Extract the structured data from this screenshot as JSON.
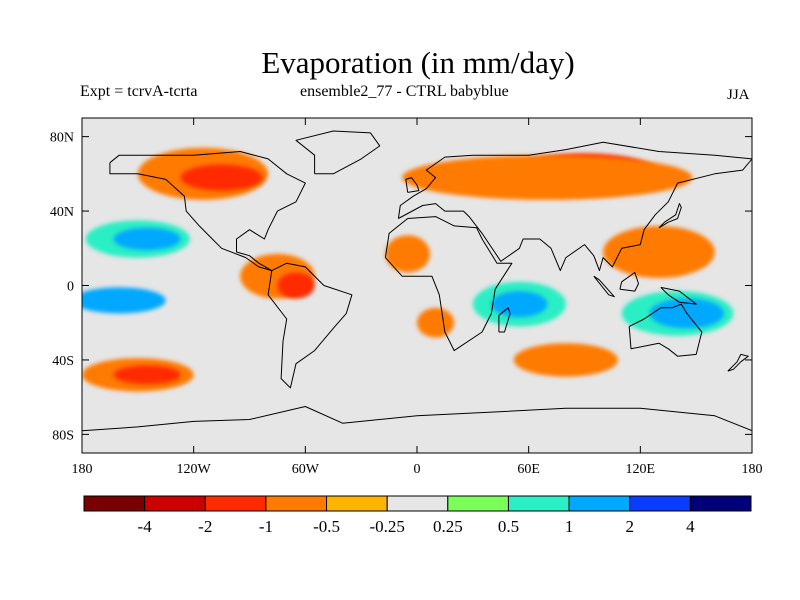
{
  "title": "Evaporation (in mm/day)",
  "subtitle_left": "Expt = tcrvA-tcrta",
  "subtitle_center": "ensemble2_77 - CTRL babyblue",
  "subtitle_right": "JJA",
  "map": {
    "projection": "cylindrical-equidistant",
    "lon_range": [
      -180,
      180
    ],
    "lat_range": [
      -90,
      90
    ],
    "background_color": "#e6e6e6",
    "coastline_color": "#000000",
    "x_ticks": [
      {
        "lon": -180,
        "label": "180"
      },
      {
        "lon": -120,
        "label": "120W"
      },
      {
        "lon": -60,
        "label": "60W"
      },
      {
        "lon": 0,
        "label": "0"
      },
      {
        "lon": 60,
        "label": "60E"
      },
      {
        "lon": 120,
        "label": "120E"
      },
      {
        "lon": 180,
        "label": "180"
      }
    ],
    "y_ticks": [
      {
        "lat": 80,
        "label": "80N"
      },
      {
        "lat": 40,
        "label": "40N"
      },
      {
        "lat": 0,
        "label": "0"
      },
      {
        "lat": -40,
        "label": "40S"
      },
      {
        "lat": -80,
        "label": "80S"
      }
    ],
    "regions": [
      {
        "name": "siberia-negative",
        "lon": 90,
        "lat": 60,
        "rlon": 40,
        "rlat": 11,
        "level": "-1"
      },
      {
        "name": "eurasia-negative-band",
        "lon": 70,
        "lat": 58,
        "rlon": 78,
        "rlat": 12,
        "level": "-0.5"
      },
      {
        "name": "north-america-negative",
        "lon": -115,
        "lat": 60,
        "rlon": 35,
        "rlat": 14,
        "level": "-0.5"
      },
      {
        "name": "north-america-core",
        "lon": -105,
        "lat": 58,
        "rlon": 22,
        "rlat": 7,
        "level": "-1"
      },
      {
        "name": "west-pacific-negative",
        "lon": 130,
        "lat": 18,
        "rlon": 30,
        "rlat": 14,
        "level": "-0.5"
      },
      {
        "name": "north-pacific-positive",
        "lon": -150,
        "lat": 25,
        "rlon": 28,
        "rlat": 10,
        "level": "0.5"
      },
      {
        "name": "north-pacific-core",
        "lon": -145,
        "lat": 25,
        "rlon": 18,
        "rlat": 6,
        "level": "1"
      },
      {
        "name": "central-america-negative",
        "lon": -75,
        "lat": 5,
        "rlon": 20,
        "rlat": 12,
        "level": "-0.5"
      },
      {
        "name": "amazon-core",
        "lon": -65,
        "lat": 0,
        "rlon": 10,
        "rlat": 7,
        "level": "-1"
      },
      {
        "name": "sahara-negative",
        "lon": -5,
        "lat": 17,
        "rlon": 12,
        "rlat": 10,
        "level": "-0.5"
      },
      {
        "name": "indian-ocean-positive",
        "lon": 55,
        "lat": -10,
        "rlon": 25,
        "rlat": 12,
        "level": "0.5"
      },
      {
        "name": "indian-ocean-core",
        "lon": 55,
        "lat": -10,
        "rlon": 15,
        "rlat": 7,
        "level": "1"
      },
      {
        "name": "australia-positive",
        "lon": 140,
        "lat": -15,
        "rlon": 30,
        "rlat": 12,
        "level": "0.5"
      },
      {
        "name": "australia-core",
        "lon": 145,
        "lat": -15,
        "rlon": 20,
        "rlat": 8,
        "level": "1"
      },
      {
        "name": "east-pacific-positive",
        "lon": -160,
        "lat": -8,
        "rlon": 25,
        "rlat": 7,
        "level": "1"
      },
      {
        "name": "south-pacific-negative",
        "lon": -150,
        "lat": -48,
        "rlon": 30,
        "rlat": 9,
        "level": "-0.5"
      },
      {
        "name": "south-pacific-core",
        "lon": -145,
        "lat": -48,
        "rlon": 18,
        "rlat": 5,
        "level": "-1"
      },
      {
        "name": "south-indian-negative",
        "lon": 80,
        "lat": -40,
        "rlon": 28,
        "rlat": 9,
        "level": "-0.5"
      },
      {
        "name": "west-africa-negative",
        "lon": 10,
        "lat": -20,
        "rlon": 10,
        "rlat": 8,
        "level": "-0.5"
      }
    ],
    "coastlines": [
      {
        "name": "north-america",
        "points": [
          [
            -165,
            66
          ],
          [
            -160,
            70
          ],
          [
            -140,
            70
          ],
          [
            -120,
            70
          ],
          [
            -95,
            72
          ],
          [
            -80,
            68
          ],
          [
            -70,
            60
          ],
          [
            -60,
            55
          ],
          [
            -65,
            45
          ],
          [
            -75,
            40
          ],
          [
            -80,
            30
          ],
          [
            -82,
            25
          ],
          [
            -90,
            30
          ],
          [
            -97,
            25
          ],
          [
            -97,
            18
          ],
          [
            -90,
            16
          ],
          [
            -85,
            12
          ],
          [
            -78,
            8
          ],
          [
            -85,
            10
          ],
          [
            -92,
            15
          ],
          [
            -105,
            20
          ],
          [
            -110,
            25
          ],
          [
            -117,
            32
          ],
          [
            -124,
            40
          ],
          [
            -125,
            48
          ],
          [
            -135,
            57
          ],
          [
            -150,
            60
          ],
          [
            -165,
            60
          ],
          [
            -165,
            66
          ]
        ]
      },
      {
        "name": "south-america",
        "points": [
          [
            -78,
            8
          ],
          [
            -70,
            12
          ],
          [
            -60,
            10
          ],
          [
            -50,
            0
          ],
          [
            -35,
            -5
          ],
          [
            -38,
            -15
          ],
          [
            -45,
            -23
          ],
          [
            -55,
            -35
          ],
          [
            -65,
            -42
          ],
          [
            -68,
            -55
          ],
          [
            -73,
            -50
          ],
          [
            -72,
            -30
          ],
          [
            -70,
            -18
          ],
          [
            -80,
            -5
          ],
          [
            -78,
            8
          ]
        ]
      },
      {
        "name": "greenland",
        "points": [
          [
            -55,
            60
          ],
          [
            -45,
            60
          ],
          [
            -30,
            68
          ],
          [
            -20,
            75
          ],
          [
            -25,
            82
          ],
          [
            -45,
            83
          ],
          [
            -65,
            78
          ],
          [
            -55,
            70
          ],
          [
            -55,
            60
          ]
        ]
      },
      {
        "name": "africa",
        "points": [
          [
            -17,
            15
          ],
          [
            -15,
            28
          ],
          [
            -5,
            36
          ],
          [
            10,
            37
          ],
          [
            20,
            32
          ],
          [
            32,
            31
          ],
          [
            35,
            25
          ],
          [
            43,
            12
          ],
          [
            51,
            12
          ],
          [
            42,
            -2
          ],
          [
            40,
            -15
          ],
          [
            35,
            -25
          ],
          [
            20,
            -35
          ],
          [
            15,
            -25
          ],
          [
            12,
            -5
          ],
          [
            8,
            5
          ],
          [
            -8,
            5
          ],
          [
            -17,
            15
          ]
        ]
      },
      {
        "name": "eurasia",
        "points": [
          [
            -10,
            36
          ],
          [
            -9,
            43
          ],
          [
            -2,
            48
          ],
          [
            5,
            52
          ],
          [
            10,
            58
          ],
          [
            5,
            62
          ],
          [
            15,
            69
          ],
          [
            30,
            70
          ],
          [
            60,
            70
          ],
          [
            80,
            73
          ],
          [
            100,
            77
          ],
          [
            130,
            72
          ],
          [
            160,
            70
          ],
          [
            180,
            68
          ],
          [
            175,
            62
          ],
          [
            160,
            60
          ],
          [
            140,
            55
          ],
          [
            135,
            45
          ],
          [
            128,
            38
          ],
          [
            122,
            30
          ],
          [
            120,
            22
          ],
          [
            110,
            20
          ],
          [
            105,
            10
          ],
          [
            100,
            15
          ],
          [
            98,
            8
          ],
          [
            95,
            16
          ],
          [
            90,
            22
          ],
          [
            80,
            15
          ],
          [
            77,
            8
          ],
          [
            72,
            20
          ],
          [
            66,
            25
          ],
          [
            57,
            25
          ],
          [
            55,
            20
          ],
          [
            45,
            13
          ],
          [
            35,
            28
          ],
          [
            28,
            37
          ],
          [
            25,
            40
          ],
          [
            15,
            40
          ],
          [
            10,
            44
          ],
          [
            3,
            43
          ],
          [
            -10,
            36
          ]
        ]
      },
      {
        "name": "australia",
        "points": [
          [
            114,
            -22
          ],
          [
            122,
            -18
          ],
          [
            131,
            -12
          ],
          [
            137,
            -12
          ],
          [
            142,
            -10
          ],
          [
            145,
            -15
          ],
          [
            153,
            -25
          ],
          [
            150,
            -37
          ],
          [
            140,
            -38
          ],
          [
            135,
            -34
          ],
          [
            130,
            -31
          ],
          [
            115,
            -34
          ],
          [
            114,
            -22
          ]
        ]
      },
      {
        "name": "antarctica",
        "points": [
          [
            -180,
            -78
          ],
          [
            -150,
            -76
          ],
          [
            -120,
            -73
          ],
          [
            -90,
            -72
          ],
          [
            -60,
            -65
          ],
          [
            -40,
            -74
          ],
          [
            0,
            -70
          ],
          [
            40,
            -68
          ],
          [
            80,
            -66
          ],
          [
            120,
            -66
          ],
          [
            160,
            -70
          ],
          [
            180,
            -78
          ]
        ]
      },
      {
        "name": "uk",
        "points": [
          [
            -5,
            50
          ],
          [
            1,
            51
          ],
          [
            0,
            54
          ],
          [
            -3,
            58
          ],
          [
            -6,
            57
          ],
          [
            -5,
            50
          ]
        ]
      },
      {
        "name": "japan",
        "points": [
          [
            130,
            31
          ],
          [
            135,
            34
          ],
          [
            140,
            36
          ],
          [
            142,
            42
          ],
          [
            141,
            44
          ],
          [
            139,
            38
          ],
          [
            133,
            34
          ],
          [
            130,
            31
          ]
        ]
      },
      {
        "name": "madagascar",
        "points": [
          [
            44,
            -25
          ],
          [
            47,
            -25
          ],
          [
            50,
            -15
          ],
          [
            49,
            -12
          ],
          [
            44,
            -16
          ],
          [
            44,
            -25
          ]
        ]
      },
      {
        "name": "borneo",
        "points": [
          [
            109,
            -2
          ],
          [
            117,
            -3
          ],
          [
            119,
            1
          ],
          [
            117,
            7
          ],
          [
            110,
            2
          ],
          [
            109,
            -2
          ]
        ]
      },
      {
        "name": "sumatra",
        "points": [
          [
            95,
            5
          ],
          [
            98,
            3
          ],
          [
            106,
            -6
          ],
          [
            103,
            -5
          ],
          [
            95,
            5
          ]
        ]
      },
      {
        "name": "new-guinea",
        "points": [
          [
            131,
            -1
          ],
          [
            141,
            -3
          ],
          [
            150,
            -10
          ],
          [
            141,
            -9
          ],
          [
            135,
            -5
          ],
          [
            131,
            -1
          ]
        ]
      },
      {
        "name": "new-zealand",
        "points": [
          [
            167,
            -46
          ],
          [
            172,
            -41
          ],
          [
            174,
            -37
          ],
          [
            178,
            -38
          ],
          [
            174,
            -41
          ],
          [
            170,
            -45
          ],
          [
            167,
            -46
          ]
        ]
      }
    ]
  },
  "colorbar": {
    "colors": [
      "#7a0000",
      "#cc0000",
      "#ff2a00",
      "#ff7a00",
      "#ffb400",
      "#e6e6e6",
      "#7aff5a",
      "#2aeec4",
      "#00a8ff",
      "#0a3cff",
      "#00007a"
    ],
    "labels": [
      "-4",
      "-2",
      "-1",
      "-0.5",
      "-0.25",
      "0.25",
      "0.5",
      "1",
      "2",
      "4"
    ]
  },
  "levels": {
    "-4": "#7a0000",
    "-2": "#cc0000",
    "-1": "#ff2a00",
    "-0.5": "#ff7a00",
    "-0.25": "#ffb400",
    "0.25": "#7aff5a",
    "0.5": "#2aeec4",
    "1": "#00a8ff",
    "2": "#0a3cff"
  }
}
